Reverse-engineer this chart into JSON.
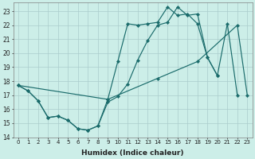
{
  "xlabel": "Humidex (Indice chaleur)",
  "bg_color": "#cceee8",
  "grid_color": "#aacccc",
  "line_color": "#1a6b6b",
  "series1_x": [
    0,
    1,
    2,
    3,
    4,
    5,
    6,
    7,
    8,
    9,
    10,
    11,
    12,
    13,
    14,
    15,
    16,
    17,
    18,
    19,
    20
  ],
  "series1_y": [
    17.7,
    17.3,
    16.6,
    15.4,
    15.5,
    15.2,
    14.6,
    14.5,
    14.8,
    16.7,
    19.4,
    22.1,
    22.0,
    22.1,
    22.2,
    23.3,
    22.7,
    22.8,
    22.1,
    19.7,
    18.4
  ],
  "series2_x": [
    0,
    1,
    2,
    3,
    4,
    5,
    6,
    7,
    8,
    9,
    10,
    11,
    12,
    13,
    14,
    15,
    16,
    17,
    18,
    19,
    20,
    21,
    22
  ],
  "series2_y": [
    17.7,
    17.3,
    16.6,
    15.4,
    15.5,
    15.2,
    14.6,
    14.5,
    14.8,
    16.5,
    16.9,
    17.8,
    19.5,
    20.9,
    22.0,
    22.2,
    23.3,
    22.7,
    22.8,
    19.7,
    18.4,
    22.1,
    17.0
  ],
  "series3_x": [
    0,
    9,
    14,
    18,
    22,
    23
  ],
  "series3_y": [
    17.7,
    16.7,
    18.2,
    19.4,
    22.0,
    17.0
  ],
  "ylim": [
    14,
    23.6
  ],
  "xlim": [
    -0.5,
    23.5
  ],
  "yticks": [
    14,
    15,
    16,
    17,
    18,
    19,
    20,
    21,
    22,
    23
  ],
  "xticks": [
    0,
    1,
    2,
    3,
    4,
    5,
    6,
    7,
    8,
    9,
    10,
    11,
    12,
    13,
    14,
    15,
    16,
    17,
    18,
    19,
    20,
    21,
    22,
    23
  ]
}
